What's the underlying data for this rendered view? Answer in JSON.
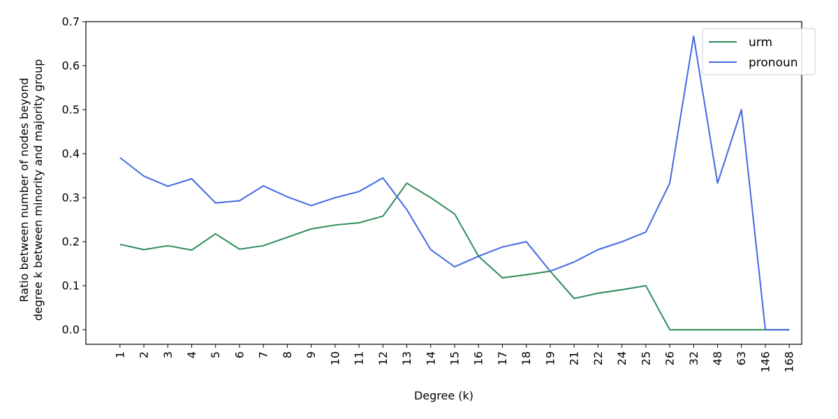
{
  "chart_data": {
    "type": "line",
    "xlabel": "Degree (k)",
    "ylabel_lines": [
      "Ratio between number of nodes beyond",
      "degree k between minority and majority group"
    ],
    "categories": [
      "1",
      "2",
      "3",
      "4",
      "5",
      "6",
      "7",
      "8",
      "9",
      "10",
      "11",
      "12",
      "13",
      "14",
      "15",
      "16",
      "17",
      "18",
      "19",
      "21",
      "22",
      "24",
      "25",
      "26",
      "32",
      "48",
      "63",
      "146",
      "168"
    ],
    "ylim": [
      -0.033,
      0.7
    ],
    "yticks": [
      "0.0",
      "0.1",
      "0.2",
      "0.3",
      "0.4",
      "0.5",
      "0.6",
      "0.7"
    ],
    "grid": false,
    "legend_position": "top-right",
    "series": [
      {
        "name": "urm",
        "color": "#2e8b57",
        "values": [
          0.194,
          0.182,
          0.191,
          0.181,
          0.218,
          0.183,
          0.191,
          0.21,
          0.229,
          0.238,
          0.243,
          0.258,
          0.333,
          0.3,
          0.263,
          0.167,
          0.118,
          0.125,
          0.133,
          0.071,
          0.083,
          0.091,
          0.1,
          0.0,
          0.0,
          0.0,
          0.0,
          0.0,
          0.0
        ]
      },
      {
        "name": "pronoun",
        "color": "#4169e1",
        "values": [
          0.391,
          0.349,
          0.326,
          0.343,
          0.288,
          0.293,
          0.327,
          0.302,
          0.282,
          0.3,
          0.314,
          0.345,
          0.273,
          0.182,
          0.143,
          0.167,
          0.188,
          0.2,
          0.133,
          0.154,
          0.182,
          0.2,
          0.222,
          0.333,
          0.667,
          0.333,
          0.5,
          0.0,
          0.0
        ]
      }
    ]
  }
}
